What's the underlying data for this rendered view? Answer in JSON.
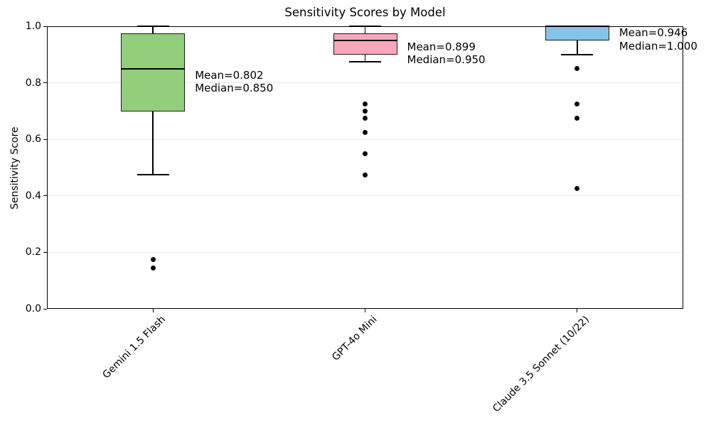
{
  "figure": {
    "title": "Sensitivity Scores by Model",
    "y_axis_label": "Sensitivity Score",
    "background_color": "#ffffff",
    "gridline_color": "#e9e9e9",
    "axis_color": "#000000"
  },
  "chart_data": {
    "type": "boxplot",
    "title": "Sensitivity Scores by Model",
    "xlabel": "",
    "ylabel": "Sensitivity Score",
    "ylim": [
      0.0,
      1.0
    ],
    "yticks": [
      "0.0",
      "0.2",
      "0.4",
      "0.6",
      "0.8",
      "1.0"
    ],
    "grid": "horizontal-light-gray",
    "legend": "none",
    "categories": [
      "Gemini 1.5 Flash",
      "GPT-4o Mini",
      "Claude 3.5 Sonnet (10/22)"
    ],
    "boxes": [
      {
        "label": "Gemini 1.5 Flash",
        "fill_color": "#93ce7b",
        "whisker_low": 0.475,
        "q1": 0.7,
        "median": 0.85,
        "q3": 0.975,
        "whisker_high": 1.0,
        "outliers": [
          0.175,
          0.145
        ],
        "mean": 0.802,
        "annotation_lines": [
          "Mean=0.802",
          "Median=0.850"
        ]
      },
      {
        "label": "GPT-4o Mini",
        "fill_color": "#f9a8bb",
        "whisker_low": 0.875,
        "q1": 0.9,
        "median": 0.95,
        "q3": 0.975,
        "whisker_high": 1.0,
        "outliers": [
          0.725,
          0.7,
          0.675,
          0.625,
          0.55,
          0.475
        ],
        "mean": 0.899,
        "annotation_lines": [
          "Mean=0.899",
          "Median=0.950"
        ]
      },
      {
        "label": "Claude 3.5 Sonnet (10/22)",
        "fill_color": "#85c4e9",
        "whisker_low": 0.9,
        "q1": 0.95,
        "median": 1.0,
        "q3": 1.0,
        "whisker_high": 1.0,
        "outliers": [
          0.85,
          0.725,
          0.675,
          0.425
        ],
        "mean": 0.946,
        "annotation_lines": [
          "Mean=0.946",
          "Median=1.000"
        ]
      }
    ]
  }
}
